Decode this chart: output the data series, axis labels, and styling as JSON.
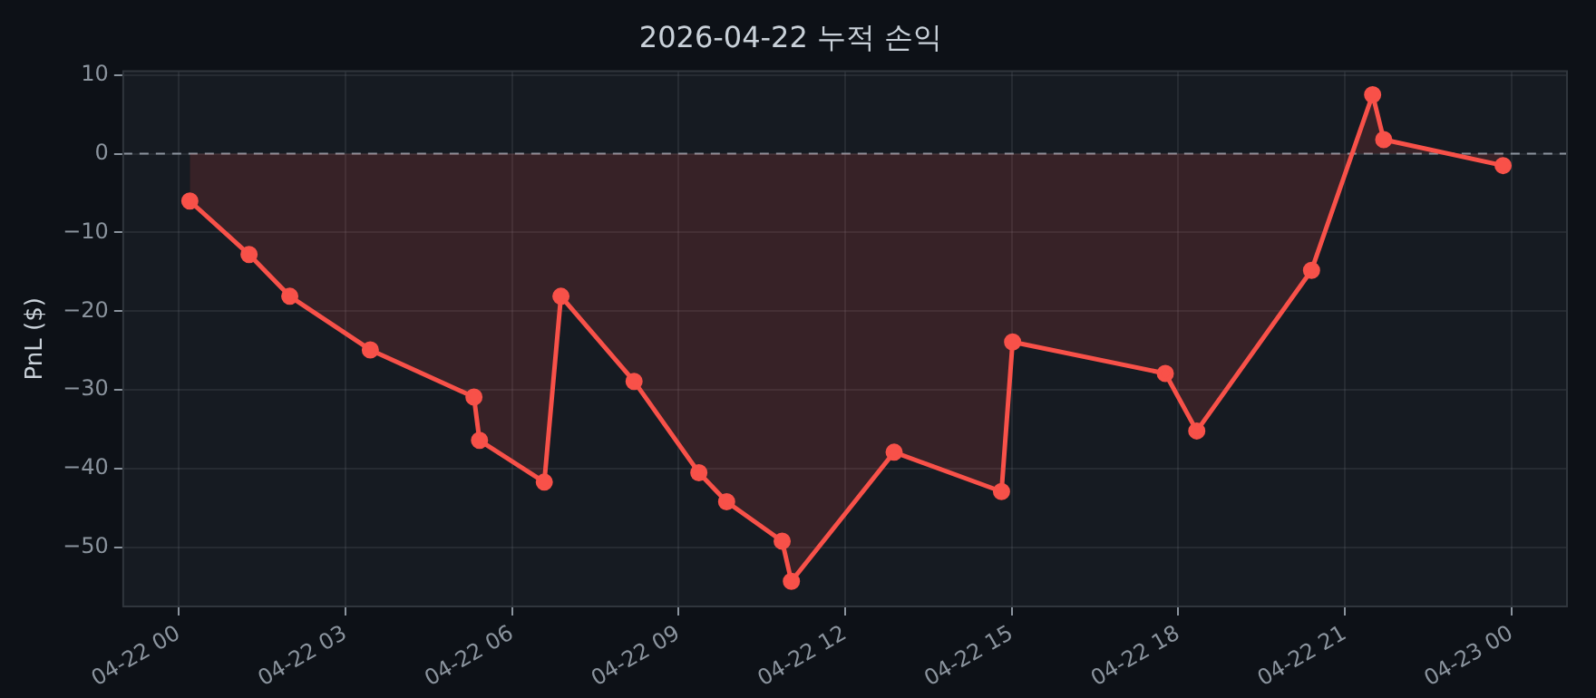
{
  "chart_data": {
    "type": "area",
    "title": "2026-04-22 누적 손익",
    "ylabel": "PnL ($)",
    "x": [
      "2026-04-22T00:12",
      "2026-04-22T01:16",
      "2026-04-22T02:00",
      "2026-04-22T03:27",
      "2026-04-22T05:19",
      "2026-04-22T05:25",
      "2026-04-22T06:35",
      "2026-04-22T06:53",
      "2026-04-22T08:12",
      "2026-04-22T09:22",
      "2026-04-22T09:52",
      "2026-04-22T10:52",
      "2026-04-22T11:02",
      "2026-04-22T12:53",
      "2026-04-22T14:49",
      "2026-04-22T15:01",
      "2026-04-22T17:46",
      "2026-04-22T18:20",
      "2026-04-22T20:24",
      "2026-04-22T21:30",
      "2026-04-22T21:42",
      "2026-04-22T23:51"
    ],
    "series": [
      {
        "color": "#f85149",
        "values": [
          -6.0,
          -12.8,
          -18.1,
          -24.9,
          -30.9,
          -36.4,
          -41.7,
          -18.1,
          -28.9,
          -40.5,
          -44.2,
          -49.2,
          -54.3,
          -37.9,
          -42.9,
          -23.9,
          -27.9,
          -35.2,
          -14.8,
          7.5,
          1.8,
          -1.5
        ]
      }
    ],
    "xlim": [
      "2026-04-21T23:00",
      "2026-04-23T01:00"
    ],
    "xticks": [
      {
        "value": "2026-04-22T00:00",
        "label": "04-22 00"
      },
      {
        "value": "2026-04-22T03:00",
        "label": "04-22 03"
      },
      {
        "value": "2026-04-22T06:00",
        "label": "04-22 06"
      },
      {
        "value": "2026-04-22T09:00",
        "label": "04-22 09"
      },
      {
        "value": "2026-04-22T12:00",
        "label": "04-22 12"
      },
      {
        "value": "2026-04-22T15:00",
        "label": "04-22 15"
      },
      {
        "value": "2026-04-22T18:00",
        "label": "04-22 18"
      },
      {
        "value": "2026-04-22T21:00",
        "label": "04-22 21"
      },
      {
        "value": "2026-04-23T00:00",
        "label": "04-23 00"
      }
    ],
    "ylim": [
      -57.5,
      10.5
    ],
    "yticks": [
      -50,
      -40,
      -30,
      -20,
      -10,
      0,
      10
    ],
    "ref_lines": [
      {
        "axis": "y",
        "value": 0,
        "color": "#8b949e",
        "line_style": "dashed"
      }
    ],
    "grid": true,
    "legend": false,
    "marker": "circle",
    "line_style": "solid"
  }
}
